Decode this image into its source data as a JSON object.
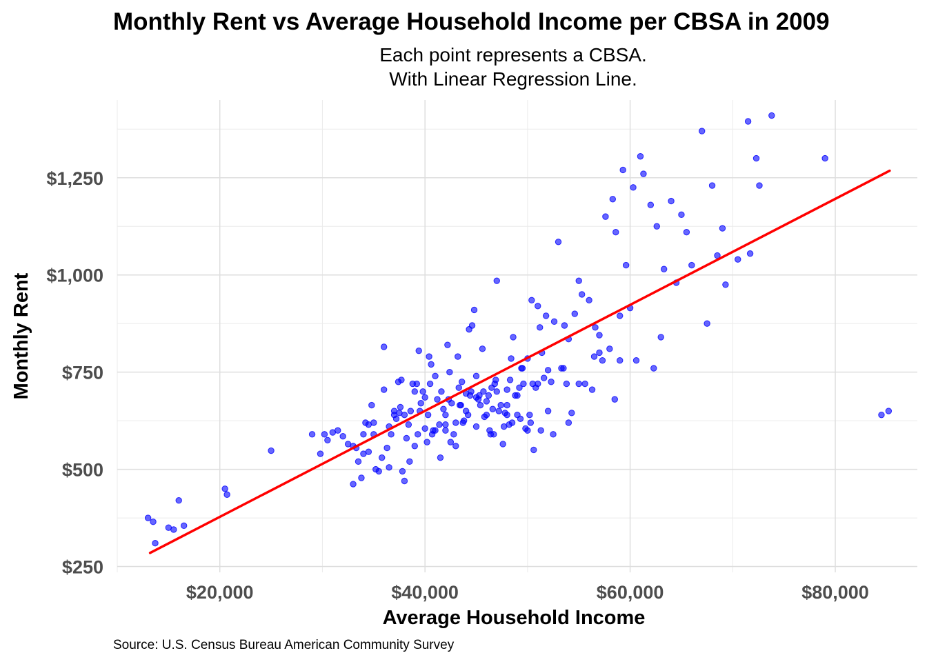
{
  "chart_data": {
    "type": "scatter",
    "title": "Monthly Rent vs Average Household Income per CBSA in 2009",
    "subtitle_lines": [
      "Each point represents a CBSA.",
      "With Linear Regression Line."
    ],
    "xlabel": "Average Household Income",
    "ylabel": "Monthly Rent",
    "caption": "Source: U.S. Census Bureau American Community Survey",
    "xlim": [
      10000,
      88000
    ],
    "ylim": [
      235,
      1450
    ],
    "x_ticks": [
      20000,
      40000,
      60000,
      80000
    ],
    "x_tick_labels": [
      "$20,000",
      "$40,000",
      "$60,000",
      "$80,000"
    ],
    "y_ticks": [
      250,
      500,
      750,
      1000,
      1250
    ],
    "y_tick_labels": [
      "$250",
      "$500",
      "$750",
      "$1,000",
      "$1,250"
    ],
    "grid": true,
    "point_color": "#0000ff",
    "line_color": "#ff0000",
    "regression_line": {
      "x": [
        13200,
        85300
      ],
      "y": [
        285,
        1268
      ]
    },
    "points_x": [
      13000,
      13500,
      13700,
      15000,
      15500,
      16000,
      16500,
      20500,
      20700,
      25000,
      29000,
      29800,
      30200,
      30500,
      31000,
      31500,
      32000,
      32500,
      33000,
      33000,
      33300,
      33500,
      33800,
      34000,
      34200,
      34500,
      34800,
      35000,
      35200,
      35500,
      35800,
      36000,
      36300,
      36500,
      36700,
      37000,
      37200,
      37400,
      37600,
      37800,
      38000,
      38200,
      38400,
      38600,
      38800,
      39000,
      39200,
      39400,
      39600,
      39800,
      40000,
      40200,
      40400,
      40600,
      40800,
      41000,
      41200,
      41400,
      41600,
      41800,
      42000,
      42200,
      42400,
      42600,
      42800,
      43000,
      43200,
      43400,
      43600,
      43800,
      44000,
      44200,
      44400,
      44600,
      44800,
      45000,
      45200,
      45400,
      45600,
      45800,
      46000,
      46200,
      46400,
      46600,
      46800,
      47000,
      47200,
      47400,
      47600,
      47800,
      48000,
      48200,
      48400,
      48600,
      48800,
      49000,
      49200,
      49400,
      49600,
      49800,
      50000,
      50200,
      50400,
      50600,
      50800,
      51000,
      51200,
      51400,
      51600,
      51800,
      52000,
      52300,
      52600,
      53000,
      53300,
      53600,
      54000,
      54300,
      54600,
      55000,
      55300,
      55600,
      56000,
      56300,
      56600,
      57000,
      57300,
      57600,
      58000,
      58300,
      58600,
      59000,
      59300,
      59600,
      60000,
      60300,
      60600,
      61000,
      61300,
      62000,
      62300,
      62600,
      63000,
      63300,
      64000,
      64500,
      65000,
      65500,
      66000,
      67000,
      67500,
      68000,
      68500,
      69000,
      69300,
      70500,
      71500,
      71700,
      72300,
      72600,
      73800,
      79000,
      84500,
      85200,
      36000,
      37500,
      39000,
      40500,
      42000,
      43500,
      45000,
      46500,
      48000,
      49500,
      51000,
      52500,
      54000,
      38000,
      40000,
      42000,
      44000,
      46000,
      48000,
      50000,
      35000,
      37000,
      41000,
      43000,
      45000,
      47000,
      49000,
      52000,
      36500,
      39500,
      42500,
      44500,
      46700,
      48500,
      50500,
      53500,
      34000,
      38500,
      40700,
      43700,
      45700,
      47700,
      55000,
      57000,
      59000,
      41500,
      44300,
      46300,
      49300,
      34500,
      39300,
      42300,
      45300,
      48300,
      51300,
      37700,
      40300,
      43300,
      46900,
      50300,
      53800,
      56500,
      58500
    ],
    "points_y": [
      375,
      365,
      310,
      350,
      345,
      420,
      355,
      450,
      435,
      548,
      590,
      540,
      590,
      575,
      595,
      600,
      585,
      565,
      560,
      462,
      555,
      520,
      478,
      590,
      620,
      615,
      665,
      590,
      500,
      495,
      530,
      815,
      555,
      505,
      590,
      640,
      630,
      725,
      660,
      495,
      470,
      580,
      615,
      650,
      720,
      560,
      720,
      805,
      670,
      700,
      685,
      570,
      790,
      770,
      600,
      740,
      680,
      615,
      700,
      655,
      615,
      820,
      750,
      670,
      590,
      620,
      790,
      665,
      725,
      625,
      695,
      640,
      690,
      870,
      910,
      685,
      680,
      665,
      810,
      635,
      675,
      690,
      590,
      655,
      720,
      985,
      650,
      665,
      565,
      645,
      705,
      615,
      785,
      840,
      690,
      640,
      710,
      760,
      720,
      605,
      785,
      640,
      935,
      550,
      710,
      920,
      865,
      800,
      735,
      895,
      755,
      725,
      880,
      1085,
      760,
      870,
      835,
      645,
      900,
      985,
      950,
      720,
      935,
      705,
      865,
      845,
      780,
      1150,
      810,
      1195,
      1110,
      895,
      1270,
      1025,
      915,
      1225,
      780,
      1305,
      1260,
      1180,
      760,
      1125,
      840,
      1015,
      1190,
      980,
      1155,
      1110,
      1025,
      1370,
      875,
      1230,
      1050,
      1120,
      975,
      1040,
      1395,
      1055,
      1300,
      1230,
      1410,
      1300,
      640,
      650,
      705,
      645,
      700,
      720,
      640,
      665,
      740,
      710,
      665,
      760,
      720,
      590,
      620,
      640,
      605,
      600,
      650,
      640,
      640,
      600,
      620,
      650,
      600,
      560,
      610,
      700,
      690,
      650,
      610,
      650,
      570,
      700,
      590,
      620,
      720,
      760,
      540,
      520,
      590,
      620,
      700,
      610,
      720,
      800,
      780,
      530,
      860,
      600,
      630,
      545,
      590,
      680,
      690,
      730,
      600,
      730,
      640,
      710,
      730,
      620,
      720,
      790,
      680
    ]
  }
}
